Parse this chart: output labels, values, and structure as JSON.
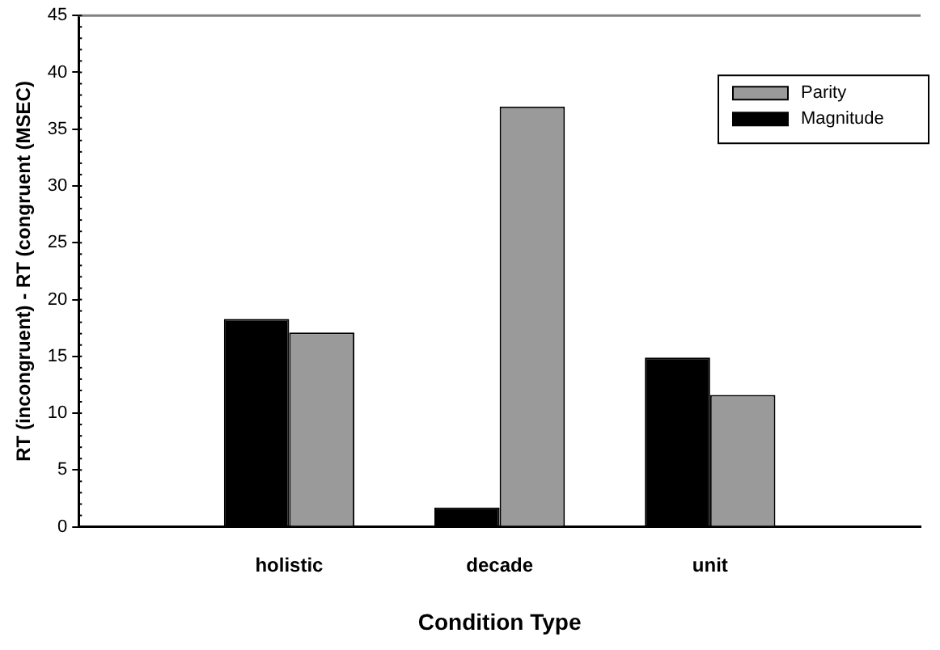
{
  "chart_data": {
    "type": "bar",
    "xlabel": "Condition Type",
    "ylabel": "RT (incongruent) - RT (congruent (MSEC)",
    "categories": [
      null,
      "holistic",
      "decade",
      "unit",
      null
    ],
    "series": [
      {
        "name": "Magnitude",
        "color": "#000000",
        "values": [
          null,
          18.3,
          1.7,
          14.9,
          null
        ]
      },
      {
        "name": "Parity",
        "color": "#9a9a9a",
        "values": [
          null,
          17.1,
          37.0,
          11.6,
          null
        ]
      }
    ],
    "ylim": [
      0,
      45
    ],
    "yticks": [
      0,
      5,
      10,
      15,
      20,
      25,
      30,
      35,
      40,
      45
    ],
    "grid": false,
    "legend": "top right"
  }
}
